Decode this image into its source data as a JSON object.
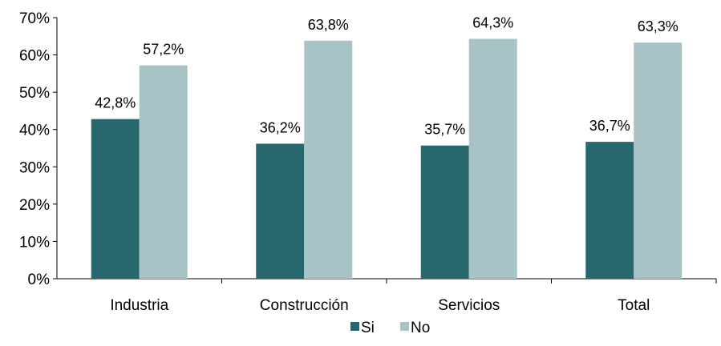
{
  "chart_data": {
    "type": "bar",
    "categories": [
      "Industria",
      "Construcción",
      "Servicios",
      "Total"
    ],
    "series": [
      {
        "name": "Si",
        "values": [
          42.8,
          36.2,
          35.7,
          36.7
        ],
        "labels": [
          "42,8%",
          "36,2%",
          "35,7%",
          "36,7%"
        ],
        "color": "#27686e"
      },
      {
        "name": "No",
        "values": [
          57.2,
          63.8,
          64.3,
          63.3
        ],
        "labels": [
          "57,2%",
          "63,8%",
          "64,3%",
          "63,3%"
        ],
        "color": "#a8c3c5"
      }
    ],
    "ylim": [
      0,
      70
    ],
    "y_ticks": [
      "0%",
      "10%",
      "20%",
      "30%",
      "40%",
      "50%",
      "60%",
      "70%"
    ],
    "y_tick_values": [
      0,
      10,
      20,
      30,
      40,
      50,
      60,
      70
    ],
    "title": "",
    "xlabel": "",
    "ylabel": "",
    "grid": false,
    "legend_position": "bottom"
  }
}
